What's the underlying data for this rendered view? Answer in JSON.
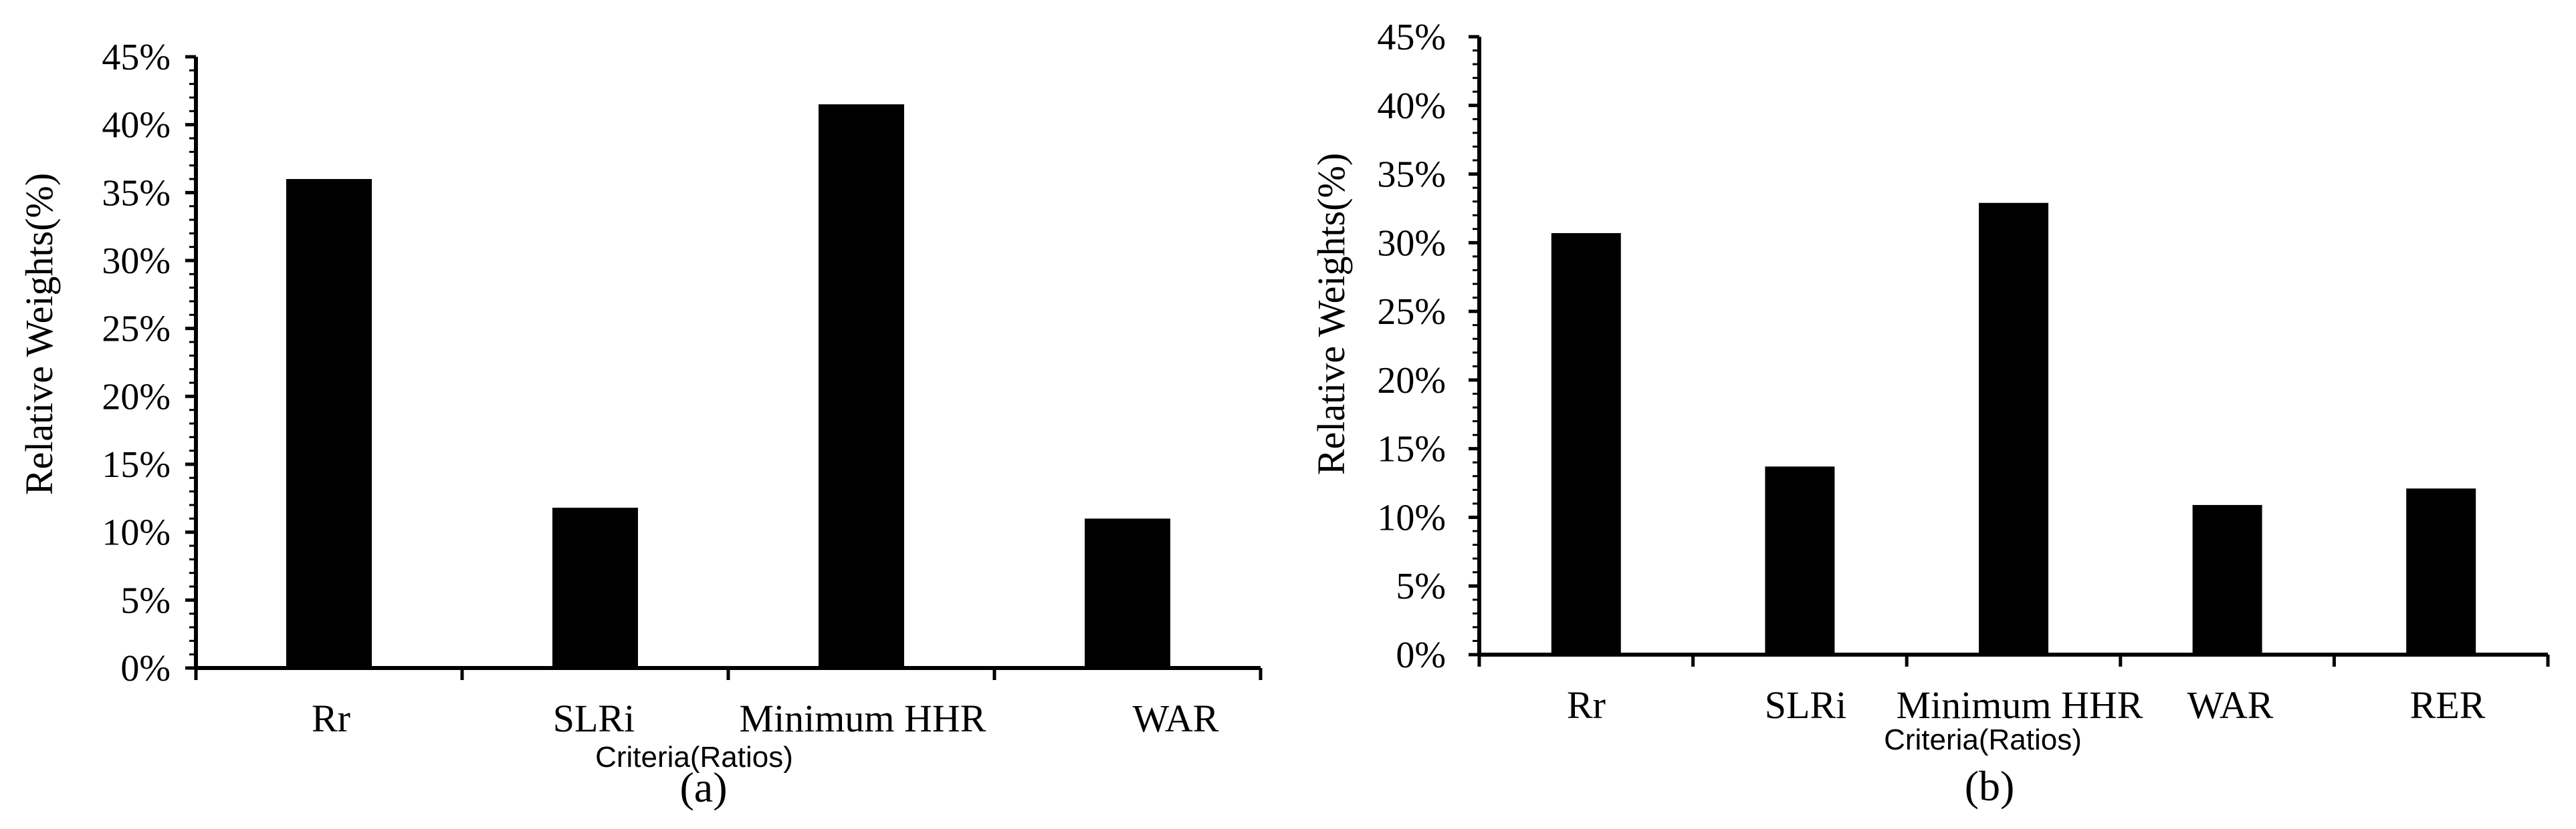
{
  "chart_data": [
    {
      "type": "bar",
      "caption": "(a)",
      "categories": [
        "Rr",
        "SLRi",
        "Minimum HHR",
        "WAR"
      ],
      "values": [
        36.0,
        11.8,
        41.5,
        11.0
      ],
      "ylabel": "Relative Weights(%)",
      "xlabel": "Criteria(Ratios)",
      "ylim": [
        0,
        45
      ],
      "yticks": [
        "0%",
        "5%",
        "10%",
        "15%",
        "20%",
        "25%",
        "30%",
        "35%",
        "40%",
        "45%"
      ],
      "grid": false,
      "bar_color": "#000000"
    },
    {
      "type": "bar",
      "caption": "(b)",
      "categories": [
        "Rr",
        "SLRi",
        "Minimum HHR",
        "WAR",
        "RER"
      ],
      "values": [
        30.7,
        13.7,
        32.9,
        10.9,
        12.1
      ],
      "ylabel": "Relative Weights(%)",
      "xlabel": "Criteria(Ratios)",
      "ylim": [
        0,
        45
      ],
      "yticks": [
        "0%",
        "5%",
        "10%",
        "15%",
        "20%",
        "25%",
        "30%",
        "35%",
        "40%",
        "45%"
      ],
      "grid": false,
      "bar_color": "#000000"
    }
  ]
}
